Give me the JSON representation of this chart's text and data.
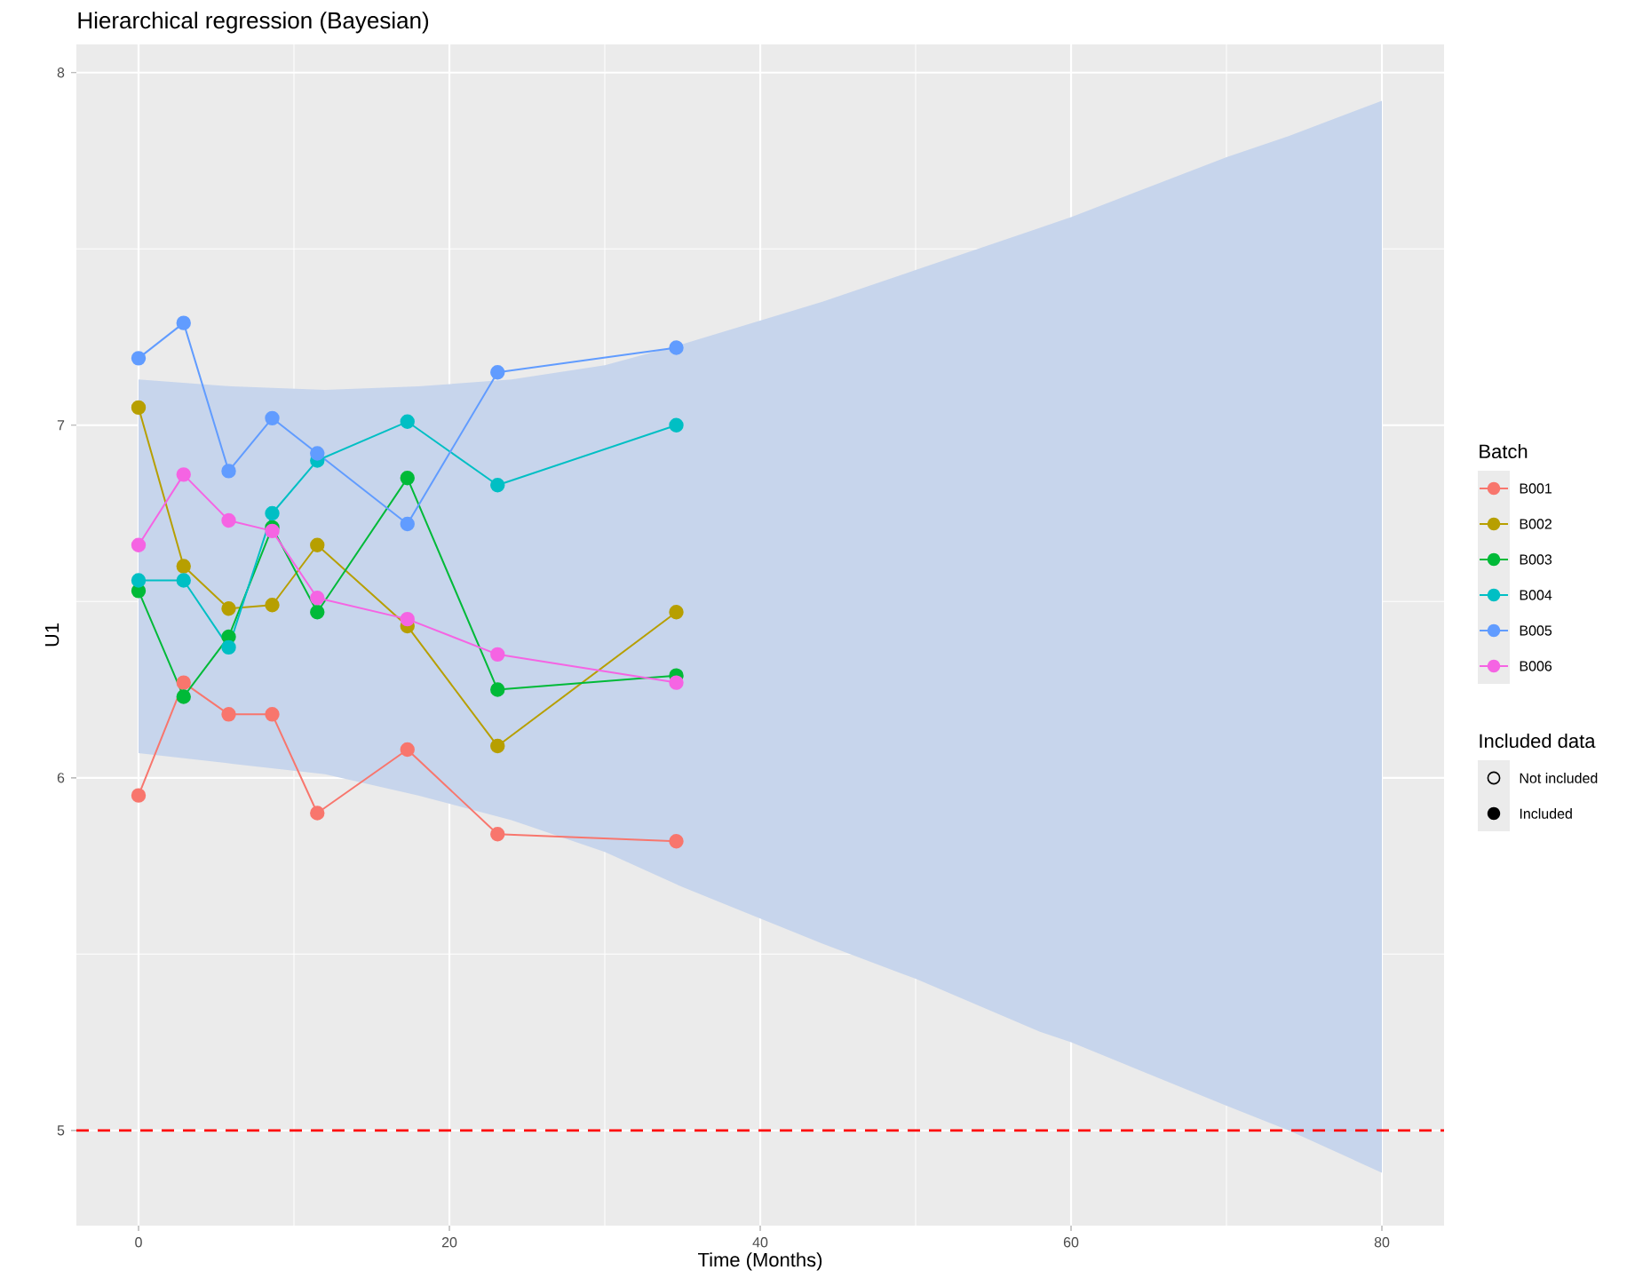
{
  "chart_data": {
    "type": "line",
    "title": "Hierarchical regression (Bayesian)",
    "xlabel": "Time (Months)",
    "ylabel": "U1",
    "legend_title": "Batch",
    "xlim": [
      -4,
      84
    ],
    "ylim": [
      4.73,
      8.08
    ],
    "xticks": [
      0,
      20,
      40,
      60,
      80
    ],
    "yticks": [
      5,
      6,
      7,
      8
    ],
    "grid": true,
    "legend": "right",
    "marker": "circle",
    "series": [
      {
        "type": "area",
        "color": "#c7d5ec",
        "x": [
          0,
          6,
          12,
          18,
          24,
          30,
          35,
          44,
          50,
          58,
          60,
          70,
          74,
          80
        ],
        "values": [
          null,
          null,
          null,
          null,
          null,
          null,
          null,
          null,
          null,
          null,
          null,
          null,
          null,
          null
        ],
        "lower": [
          6.07,
          6.04,
          6.01,
          5.95,
          5.88,
          5.79,
          5.69,
          5.53,
          5.43,
          5.28,
          5.25,
          5.07,
          5.0,
          4.88
        ],
        "upper": [
          7.13,
          7.11,
          7.1,
          7.11,
          7.13,
          7.17,
          7.23,
          7.35,
          7.44,
          7.56,
          7.59,
          7.76,
          7.82,
          7.92
        ]
      },
      {
        "name": "B001",
        "color": "#f8766d",
        "x": [
          0,
          2.9,
          5.8,
          8.6,
          11.5,
          17.3,
          23.1,
          34.6
        ],
        "values": [
          5.95,
          6.27,
          6.18,
          6.18,
          5.9,
          6.08,
          5.84,
          5.82
        ]
      },
      {
        "name": "B002",
        "color": "#b79f00",
        "x": [
          0,
          2.9,
          5.8,
          8.6,
          11.5,
          17.3,
          23.1,
          34.6
        ],
        "values": [
          7.05,
          6.6,
          6.48,
          6.49,
          6.66,
          6.43,
          6.09,
          6.47
        ]
      },
      {
        "name": "B003",
        "color": "#00ba38",
        "x": [
          0,
          2.9,
          5.8,
          8.6,
          11.5,
          17.3,
          23.1,
          34.6
        ],
        "values": [
          6.53,
          6.23,
          6.4,
          6.71,
          6.47,
          6.85,
          6.25,
          6.29
        ]
      },
      {
        "name": "B004",
        "color": "#00bfc4",
        "x": [
          0,
          2.9,
          5.8,
          8.6,
          11.5,
          17.3,
          23.1,
          34.6
        ],
        "values": [
          6.56,
          6.56,
          6.37,
          6.75,
          6.9,
          7.01,
          6.83,
          7.0
        ]
      },
      {
        "name": "B005",
        "color": "#619cff",
        "x": [
          0,
          2.9,
          5.8,
          8.6,
          11.5,
          17.3,
          23.1,
          34.6
        ],
        "values": [
          7.19,
          7.29,
          6.87,
          7.02,
          6.92,
          6.72,
          7.15,
          7.22
        ]
      },
      {
        "name": "B006",
        "color": "#f564e3",
        "x": [
          0,
          2.9,
          5.8,
          8.6,
          11.5,
          17.3,
          23.1,
          34.6
        ],
        "values": [
          6.66,
          6.86,
          6.73,
          6.7,
          6.51,
          6.45,
          6.35,
          6.27
        ]
      }
    ],
    "ref_lines": [
      {
        "axis": "y",
        "value": 5,
        "color": "#ff0000",
        "line_style": "dashed"
      }
    ],
    "annotations": [
      "Included data",
      "Not included",
      "Included"
    ]
  }
}
